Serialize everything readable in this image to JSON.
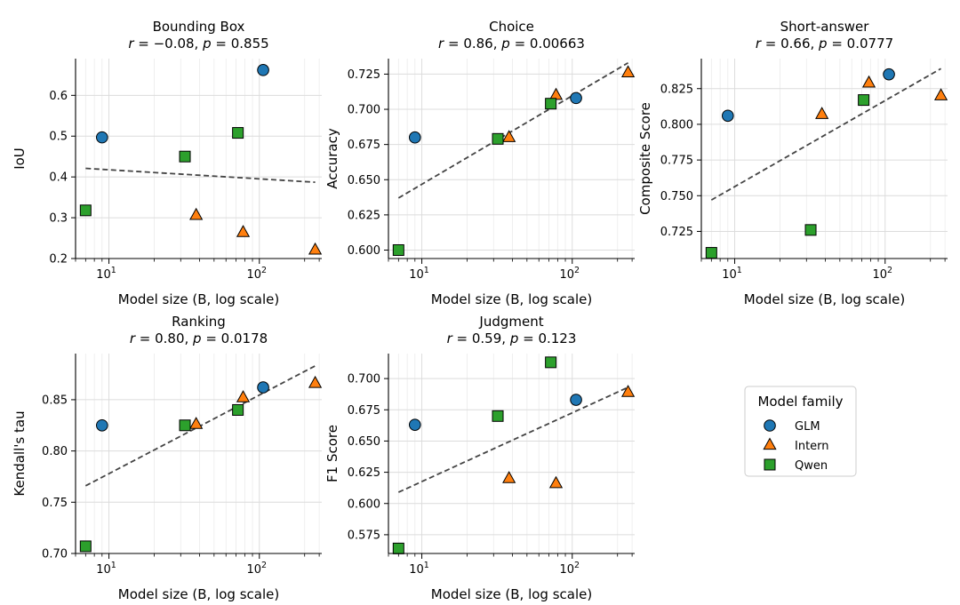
{
  "chart_data": {
    "type": "scatter",
    "x_scale": "log",
    "legend": {
      "title": "Model family",
      "placement": "right of second row",
      "entries": [
        {
          "name": "GLM",
          "marker": "circle",
          "color": "#1f77b4"
        },
        {
          "name": "Intern",
          "marker": "triangle",
          "color": "#ff7f0e"
        },
        {
          "name": "Qwen",
          "marker": "square",
          "color": "#2ca02c"
        }
      ]
    },
    "panels": [
      {
        "id": "bounding-box",
        "title": "Bounding Box",
        "r_text": "−0.08",
        "p_text": "0.855",
        "xlabel": "Model size (B, log scale)",
        "ylabel": "IoU",
        "xlim": [
          6,
          260
        ],
        "ylim": [
          0.2,
          0.69
        ],
        "yticks": [
          0.2,
          0.3,
          0.4,
          0.5,
          0.6
        ],
        "ytick_labels": [
          "0.2",
          "0.3",
          "0.4",
          "0.5",
          "0.6"
        ],
        "fit": {
          "x0": 7,
          "y0": 0.421,
          "x1": 235,
          "y1": 0.387
        },
        "points": [
          {
            "family": "GLM",
            "x": 9,
            "y": 0.497
          },
          {
            "family": "GLM",
            "x": 106,
            "y": 0.662
          },
          {
            "family": "Intern",
            "x": 38,
            "y": 0.306
          },
          {
            "family": "Intern",
            "x": 78,
            "y": 0.264
          },
          {
            "family": "Intern",
            "x": 235,
            "y": 0.221
          },
          {
            "family": "Qwen",
            "x": 7,
            "y": 0.318
          },
          {
            "family": "Qwen",
            "x": 32,
            "y": 0.45
          },
          {
            "family": "Qwen",
            "x": 72,
            "y": 0.508
          }
        ]
      },
      {
        "id": "choice",
        "title": "Choice",
        "r_text": "0.86",
        "p_text": "0.00663",
        "xlabel": "Model size (B, log scale)",
        "ylabel": "Accuracy",
        "xlim": [
          6,
          260
        ],
        "ylim": [
          0.594,
          0.736
        ],
        "yticks": [
          0.6,
          0.625,
          0.65,
          0.675,
          0.7,
          0.725
        ],
        "ytick_labels": [
          "0.600",
          "0.625",
          "0.650",
          "0.675",
          "0.700",
          "0.725"
        ],
        "fit": {
          "x0": 7,
          "y0": 0.637,
          "x1": 235,
          "y1": 0.733
        },
        "points": [
          {
            "family": "GLM",
            "x": 9,
            "y": 0.68
          },
          {
            "family": "GLM",
            "x": 106,
            "y": 0.708
          },
          {
            "family": "Intern",
            "x": 38,
            "y": 0.68
          },
          {
            "family": "Intern",
            "x": 78,
            "y": 0.71
          },
          {
            "family": "Intern",
            "x": 235,
            "y": 0.726
          },
          {
            "family": "Qwen",
            "x": 7,
            "y": 0.6
          },
          {
            "family": "Qwen",
            "x": 32,
            "y": 0.679
          },
          {
            "family": "Qwen",
            "x": 72,
            "y": 0.704
          }
        ]
      },
      {
        "id": "short-answer",
        "title": "Short-answer",
        "r_text": "0.66",
        "p_text": "0.0777",
        "xlabel": "Model size (B, log scale)",
        "ylabel": "Composite Score",
        "xlim": [
          6,
          260
        ],
        "ylim": [
          0.706,
          0.846
        ],
        "yticks": [
          0.725,
          0.75,
          0.775,
          0.8,
          0.825
        ],
        "ytick_labels": [
          "0.725",
          "0.750",
          "0.775",
          "0.800",
          "0.825"
        ],
        "fit": {
          "x0": 7,
          "y0": 0.747,
          "x1": 235,
          "y1": 0.839
        },
        "points": [
          {
            "family": "GLM",
            "x": 9,
            "y": 0.806
          },
          {
            "family": "GLM",
            "x": 106,
            "y": 0.835
          },
          {
            "family": "Intern",
            "x": 38,
            "y": 0.807
          },
          {
            "family": "Intern",
            "x": 78,
            "y": 0.829
          },
          {
            "family": "Intern",
            "x": 235,
            "y": 0.82
          },
          {
            "family": "Qwen",
            "x": 7,
            "y": 0.71
          },
          {
            "family": "Qwen",
            "x": 32,
            "y": 0.726
          },
          {
            "family": "Qwen",
            "x": 72,
            "y": 0.817
          }
        ]
      },
      {
        "id": "ranking",
        "title": "Ranking",
        "r_text": "0.80",
        "p_text": "0.0178",
        "xlabel": "Model size (B, log scale)",
        "ylabel": "Kendall's tau",
        "xlim": [
          6,
          260
        ],
        "ylim": [
          0.7,
          0.895
        ],
        "yticks": [
          0.7,
          0.75,
          0.8,
          0.85
        ],
        "ytick_labels": [
          "0.70",
          "0.75",
          "0.80",
          "0.85"
        ],
        "fit": {
          "x0": 7,
          "y0": 0.766,
          "x1": 235,
          "y1": 0.883
        },
        "points": [
          {
            "family": "GLM",
            "x": 9,
            "y": 0.825
          },
          {
            "family": "GLM",
            "x": 106,
            "y": 0.862
          },
          {
            "family": "Intern",
            "x": 38,
            "y": 0.826
          },
          {
            "family": "Intern",
            "x": 78,
            "y": 0.852
          },
          {
            "family": "Intern",
            "x": 235,
            "y": 0.866
          },
          {
            "family": "Qwen",
            "x": 7,
            "y": 0.707
          },
          {
            "family": "Qwen",
            "x": 32,
            "y": 0.825
          },
          {
            "family": "Qwen",
            "x": 72,
            "y": 0.84
          }
        ]
      },
      {
        "id": "judgment",
        "title": "Judgment",
        "r_text": "0.59",
        "p_text": "0.123",
        "xlabel": "Model size (B, log scale)",
        "ylabel": "F1 Score",
        "xlim": [
          6,
          260
        ],
        "ylim": [
          0.56,
          0.72
        ],
        "yticks": [
          0.575,
          0.6,
          0.625,
          0.65,
          0.675,
          0.7
        ],
        "ytick_labels": [
          "0.575",
          "0.600",
          "0.625",
          "0.650",
          "0.675",
          "0.700"
        ],
        "fit": {
          "x0": 7,
          "y0": 0.609,
          "x1": 235,
          "y1": 0.693
        },
        "points": [
          {
            "family": "GLM",
            "x": 9,
            "y": 0.663
          },
          {
            "family": "GLM",
            "x": 106,
            "y": 0.683
          },
          {
            "family": "Intern",
            "x": 38,
            "y": 0.62
          },
          {
            "family": "Intern",
            "x": 78,
            "y": 0.616
          },
          {
            "family": "Intern",
            "x": 235,
            "y": 0.689
          },
          {
            "family": "Qwen",
            "x": 7,
            "y": 0.564
          },
          {
            "family": "Qwen",
            "x": 32,
            "y": 0.67
          },
          {
            "family": "Qwen",
            "x": 72,
            "y": 0.713
          }
        ]
      }
    ]
  }
}
